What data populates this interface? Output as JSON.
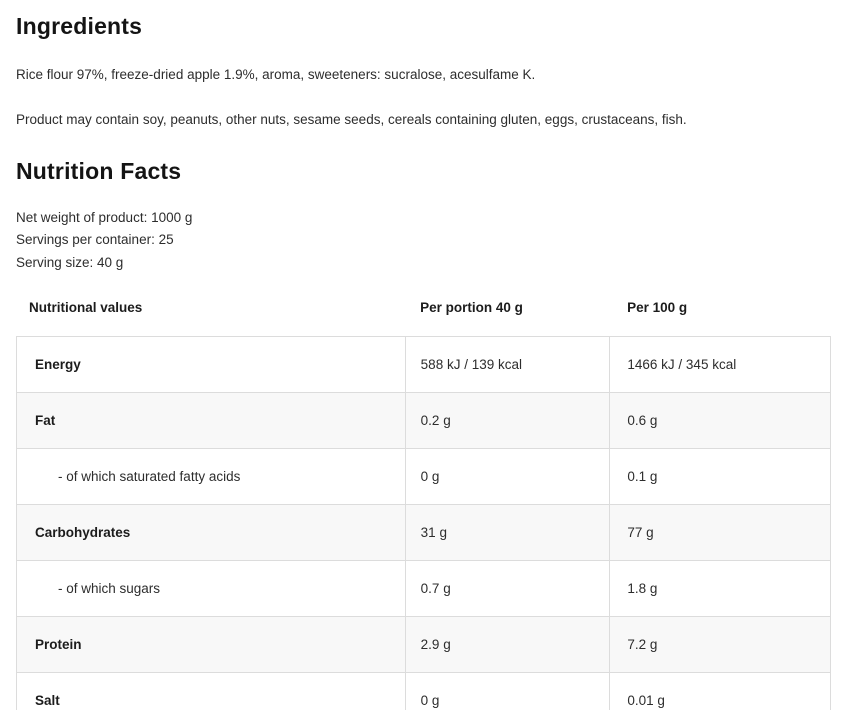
{
  "ingredients": {
    "title": "Ingredients",
    "composition": "Rice flour 97%, freeze-dried apple 1.9%, aroma, sweeteners: sucralose, acesulfame K.",
    "allergens": "Product may contain soy, peanuts, other nuts, sesame seeds, cereals containing gluten, eggs, crustaceans, fish."
  },
  "nutrition": {
    "title": "Nutrition Facts",
    "net_weight": "Net weight of product: 1000 g",
    "servings_per_container": "Servings per container: 25",
    "serving_size": "Serving size: 40 g",
    "table": {
      "headers": [
        "Nutritional values",
        "Per portion 40 g",
        "Per 100 g"
      ],
      "rows": [
        {
          "label": "Energy",
          "per_portion": "588 kJ / 139 kcal",
          "per_100": "1466 kJ / 345 kcal",
          "sub": false
        },
        {
          "label": "Fat",
          "per_portion": "0.2 g",
          "per_100": "0.6 g",
          "sub": false
        },
        {
          "label": "- of which saturated fatty acids",
          "per_portion": "0 g",
          "per_100": "0.1 g",
          "sub": true
        },
        {
          "label": "Carbohydrates",
          "per_portion": "31 g",
          "per_100": "77 g",
          "sub": false
        },
        {
          "label": "- of which sugars",
          "per_portion": "0.7 g",
          "per_100": "1.8 g",
          "sub": true
        },
        {
          "label": "Protein",
          "per_portion": "2.9 g",
          "per_100": "7.2 g",
          "sub": false
        },
        {
          "label": "Salt",
          "per_portion": "0 g",
          "per_100": "0.01 g",
          "sub": false
        }
      ]
    }
  },
  "colors": {
    "row_stripe": "#f8f8f8",
    "table_border": "#dcdcdc",
    "heading_text": "#141414",
    "body_text": "#2d2d2d"
  }
}
